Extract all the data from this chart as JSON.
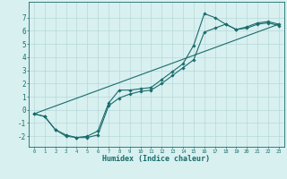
{
  "xlabel": "Humidex (Indice chaleur)",
  "bg_color": "#d8f0f0",
  "grid_color": "#b8d8d8",
  "line_color": "#1a6b6b",
  "xlim": [
    -0.5,
    23.5
  ],
  "ylim": [
    -2.8,
    8.2
  ],
  "xticks": [
    0,
    1,
    2,
    3,
    4,
    5,
    6,
    7,
    8,
    9,
    10,
    11,
    12,
    13,
    14,
    15,
    16,
    17,
    18,
    19,
    20,
    21,
    22,
    23
  ],
  "yticks": [
    -2,
    -1,
    0,
    1,
    2,
    3,
    4,
    5,
    6,
    7
  ],
  "line1_x": [
    0,
    1,
    2,
    3,
    4,
    5,
    6,
    7,
    8,
    9,
    10,
    11,
    12,
    13,
    14,
    15,
    16,
    17,
    18,
    19,
    20,
    21,
    22,
    23
  ],
  "line1_y": [
    -0.3,
    -0.5,
    -1.5,
    -2.0,
    -2.1,
    -2.1,
    -1.9,
    0.3,
    0.9,
    1.2,
    1.4,
    1.5,
    2.0,
    2.6,
    3.2,
    3.8,
    5.9,
    6.2,
    6.5,
    6.1,
    6.2,
    6.5,
    6.6,
    6.4
  ],
  "line2_x": [
    0,
    1,
    2,
    3,
    4,
    5,
    6,
    7,
    8,
    9,
    10,
    11,
    12,
    13,
    14,
    15,
    16,
    17,
    18,
    19,
    20,
    21,
    22,
    23
  ],
  "line2_y": [
    -0.3,
    -0.5,
    -1.5,
    -1.9,
    -2.1,
    -2.0,
    -1.6,
    0.5,
    1.5,
    1.5,
    1.6,
    1.7,
    2.3,
    2.9,
    3.5,
    4.9,
    7.3,
    7.0,
    6.5,
    6.1,
    6.3,
    6.6,
    6.7,
    6.5
  ],
  "line3_x": [
    0,
    23
  ],
  "line3_y": [
    -0.3,
    6.5
  ]
}
